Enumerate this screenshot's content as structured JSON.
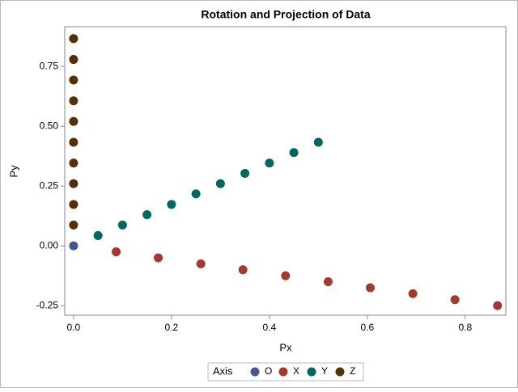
{
  "chart_data": {
    "type": "scatter",
    "title": "Rotation and Projection of Data",
    "x_label": "Px",
    "y_label": "Py",
    "legend_title": "Axis",
    "xlim": [
      -0.018,
      0.883
    ],
    "ylim": [
      -0.29,
      0.916
    ],
    "xticks": [
      {
        "value": 0,
        "label": "0.0"
      },
      {
        "value": 0.2,
        "label": "0.2"
      },
      {
        "value": 0.4,
        "label": "0.4"
      },
      {
        "value": 0.6,
        "label": "0.6"
      },
      {
        "value": 0.8,
        "label": "0.8"
      }
    ],
    "yticks": [
      {
        "value": -0.25,
        "label": "-0.25"
      },
      {
        "value": 0,
        "label": "0.00"
      },
      {
        "value": 0.25,
        "label": "0.25"
      },
      {
        "value": 0.5,
        "label": "0.50"
      },
      {
        "value": 0.75,
        "label": "0.75"
      }
    ],
    "series": [
      {
        "name": "O",
        "color": "#445694",
        "x": [
          0
        ],
        "values": [
          0
        ]
      },
      {
        "name": "X",
        "color": "#a23a2e",
        "x": [
          0.087,
          0.173,
          0.26,
          0.346,
          0.433,
          0.52,
          0.606,
          0.693,
          0.779,
          0.866
        ],
        "values": [
          -0.025,
          -0.05,
          -0.075,
          -0.1,
          -0.125,
          -0.15,
          -0.175,
          -0.2,
          -0.225,
          -0.25
        ]
      },
      {
        "name": "Y",
        "color": "#01665e",
        "x": [
          0.05,
          0.1,
          0.15,
          0.2,
          0.25,
          0.3,
          0.35,
          0.4,
          0.45,
          0.5
        ],
        "values": [
          0.043,
          0.087,
          0.13,
          0.173,
          0.217,
          0.26,
          0.303,
          0.346,
          0.39,
          0.433
        ]
      },
      {
        "name": "Z",
        "color": "#543005",
        "x": [
          0,
          0,
          0,
          0,
          0,
          0,
          0,
          0,
          0,
          0
        ],
        "values": [
          0.087,
          0.173,
          0.26,
          0.346,
          0.433,
          0.52,
          0.606,
          0.693,
          0.779,
          0.866
        ]
      }
    ]
  }
}
